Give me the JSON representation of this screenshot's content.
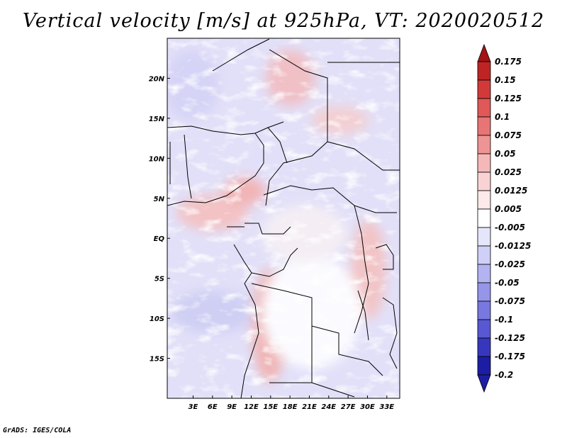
{
  "title": "Vertical velocity [m/s] at 925hPa, VT: 2020020512",
  "footer": "GrADS: IGES/COLA",
  "map": {
    "lon_range": [
      -1,
      35
    ],
    "lat_range": [
      -20,
      25
    ],
    "x_ticks": [
      {
        "value": 3,
        "label": "3E"
      },
      {
        "value": 6,
        "label": "6E"
      },
      {
        "value": 9,
        "label": "9E"
      },
      {
        "value": 12,
        "label": "12E"
      },
      {
        "value": 15,
        "label": "15E"
      },
      {
        "value": 18,
        "label": "18E"
      },
      {
        "value": 21,
        "label": "21E"
      },
      {
        "value": 24,
        "label": "24E"
      },
      {
        "value": 27,
        "label": "27E"
      },
      {
        "value": 30,
        "label": "30E"
      },
      {
        "value": 33,
        "label": "33E"
      }
    ],
    "y_ticks": [
      {
        "value": 20,
        "label": "20N"
      },
      {
        "value": 15,
        "label": "15N"
      },
      {
        "value": 10,
        "label": "10N"
      },
      {
        "value": 5,
        "label": "5N"
      },
      {
        "value": 0,
        "label": "EQ"
      },
      {
        "value": -5,
        "label": "5S"
      },
      {
        "value": -10,
        "label": "10S"
      },
      {
        "value": -15,
        "label": "15S"
      }
    ]
  },
  "colorbar": {
    "levels": [
      {
        "label": "0.175",
        "color": "#a31414"
      },
      {
        "label": "0.15",
        "color": "#be2424"
      },
      {
        "label": "0.125",
        "color": "#d23a3a"
      },
      {
        "label": "0.1",
        "color": "#e05858"
      },
      {
        "label": "0.075",
        "color": "#e87575"
      },
      {
        "label": "0.05",
        "color": "#ee9494"
      },
      {
        "label": "0.025",
        "color": "#f5b8b8"
      },
      {
        "label": "0.0125",
        "color": "#f9d3d3"
      },
      {
        "label": "0.005",
        "color": "#fce9e9"
      },
      {
        "label": "-0.005",
        "color": "#ffffff"
      },
      {
        "label": "-0.0125",
        "color": "#e6e6fb"
      },
      {
        "label": "-0.025",
        "color": "#cfcff7"
      },
      {
        "label": "-0.05",
        "color": "#b3b3f2"
      },
      {
        "label": "-0.075",
        "color": "#9595ea"
      },
      {
        "label": "-0.1",
        "color": "#7878e0"
      },
      {
        "label": "-0.125",
        "color": "#5858d2"
      },
      {
        "label": "-0.175",
        "color": "#3737bd"
      },
      {
        "label": "-0.2",
        "color": "#1d1da3"
      }
    ],
    "top_color": "#a31414",
    "bottom_color": "#1d1da3"
  }
}
